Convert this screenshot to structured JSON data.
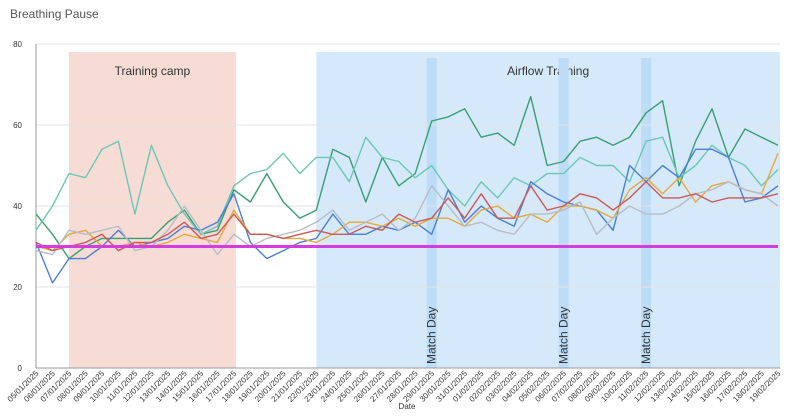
{
  "chart_data": {
    "type": "line",
    "title": "Breathing Pause",
    "x_label": "Date",
    "categories": [
      "05/01/2025",
      "06/01/2025",
      "07/01/2025",
      "08/01/2025",
      "09/01/2025",
      "10/01/2025",
      "11/01/2025",
      "12/01/2025",
      "13/01/2025",
      "14/01/2025",
      "15/01/2025",
      "16/01/2025",
      "17/01/2025",
      "18/01/2025",
      "19/01/2025",
      "20/01/2025",
      "21/01/2025",
      "22/01/2025",
      "23/01/2025",
      "24/01/2025",
      "25/01/2025",
      "26/01/2025",
      "27/01/2025",
      "28/01/2025",
      "29/01/2025",
      "30/01/2025",
      "31/01/2025",
      "01/02/2025",
      "02/02/2025",
      "03/02/2025",
      "04/02/2025",
      "05/02/2025",
      "06/02/2025",
      "07/02/2025",
      "08/02/2025",
      "09/02/2025",
      "10/02/2025",
      "11/02/2025",
      "12/02/2025",
      "13/02/2025",
      "14/02/2025",
      "15/02/2025",
      "16/02/2025",
      "17/02/2025",
      "18/02/2025",
      "19/02/2025"
    ],
    "series": [
      {
        "color": "#3a9e72",
        "values": [
          38,
          33,
          27,
          30,
          32,
          32,
          32,
          32,
          36,
          39,
          33,
          34,
          44,
          41,
          48,
          41,
          37,
          39,
          54,
          52,
          41,
          52,
          45,
          48,
          61,
          62,
          64,
          57,
          58,
          55,
          67,
          50,
          51,
          56,
          57,
          55,
          57,
          63,
          66,
          45,
          56,
          64,
          52,
          59,
          57,
          55
        ]
      },
      {
        "color": "#6cc7b5",
        "values": [
          34,
          40,
          48,
          47,
          54,
          56,
          38,
          55,
          45,
          38,
          33,
          35,
          45,
          48,
          49,
          53,
          48,
          52,
          52,
          46,
          57,
          52,
          51,
          47,
          50,
          44,
          40,
          46,
          42,
          47,
          45,
          48,
          48,
          52,
          50,
          50,
          46,
          56,
          57,
          47,
          50,
          55,
          52,
          50,
          45,
          49
        ]
      },
      {
        "color": "#4a7fd4",
        "values": [
          31,
          21,
          27,
          27,
          30,
          34,
          30,
          31,
          32,
          35,
          34,
          36,
          43,
          31,
          27,
          29,
          31,
          32,
          38,
          33,
          33,
          35,
          34,
          36,
          33,
          44,
          36,
          40,
          37,
          35,
          46,
          43,
          41,
          40,
          39,
          34,
          50,
          46,
          50,
          47,
          54,
          54,
          52,
          41,
          42,
          45
        ]
      },
      {
        "color": "#e6a93a",
        "values": [
          30,
          29,
          33,
          34,
          30,
          30,
          31,
          30,
          31,
          33,
          32,
          31,
          39,
          33,
          33,
          32,
          32,
          31,
          33,
          36,
          36,
          35,
          37,
          35,
          37,
          37,
          35,
          39,
          40,
          37,
          38,
          36,
          40,
          40,
          39,
          37,
          44,
          47,
          43,
          47,
          41,
          45,
          46,
          44,
          43,
          53
        ]
      },
      {
        "color": "#b7bcc6",
        "values": [
          29,
          28,
          34,
          33,
          34,
          35,
          29,
          30,
          34,
          40,
          34,
          28,
          33,
          30,
          32,
          33,
          34,
          36,
          39,
          34,
          36,
          38,
          34,
          37,
          45,
          40,
          35,
          36,
          34,
          33,
          38,
          38,
          39,
          41,
          33,
          37,
          40,
          38,
          38,
          40,
          43,
          44,
          46,
          44,
          43,
          40
        ]
      },
      {
        "color": "#c95a5a",
        "values": [
          31,
          29,
          30,
          31,
          33,
          29,
          31,
          31,
          33,
          36,
          32,
          33,
          38,
          33,
          33,
          32,
          33,
          34,
          33,
          33,
          35,
          34,
          38,
          36,
          37,
          42,
          37,
          43,
          37,
          37,
          45,
          39,
          40,
          43,
          42,
          39,
          42,
          46,
          42,
          42,
          43,
          41,
          42,
          42,
          42,
          43
        ]
      }
    ],
    "reference_line": {
      "value": 30,
      "color": "#d63ae0"
    },
    "regions": [
      {
        "label": "Training camp",
        "start": "07/01/2025",
        "end": "17/01/2025",
        "color": "#f7dcd6"
      },
      {
        "label": "Airflow Training",
        "start": "22/01/2025",
        "end": "19/02/2025",
        "color": "#d6e9fb"
      }
    ],
    "match_days": [
      {
        "label": "Match Day",
        "at": "29/01/2025"
      },
      {
        "label": "Match Day",
        "at": "06/02/2025"
      },
      {
        "label": "Match Day",
        "at": "11/02/2025"
      }
    ],
    "match_day_color": "#bcdcf7",
    "ylim": [
      0,
      80
    ],
    "yticks": [
      0,
      20,
      40,
      60,
      80
    ],
    "grid": true
  }
}
